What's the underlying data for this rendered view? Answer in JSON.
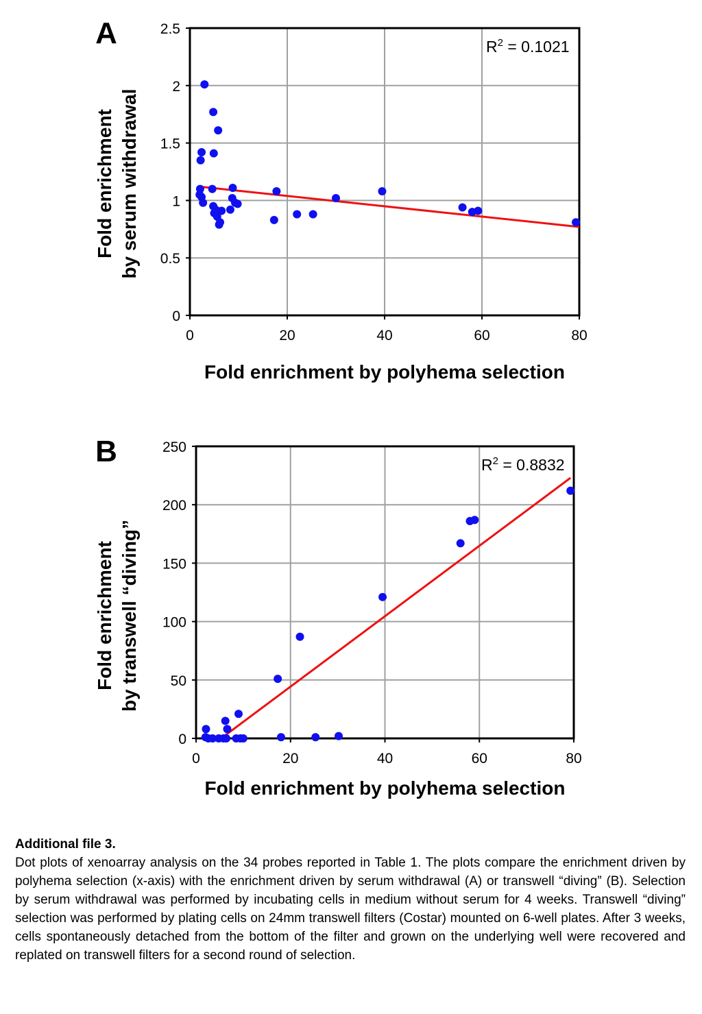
{
  "chart_data": [
    {
      "type": "scatter",
      "panel_label": "A",
      "xlabel": "Fold enrichment by polyhema selection",
      "ylabel_lines": [
        "Fold enrichment",
        "by serum withdrawal"
      ],
      "xlim": [
        0,
        80
      ],
      "ylim": [
        0,
        2.5
      ],
      "x_ticks": [
        0,
        20,
        40,
        60,
        80
      ],
      "y_ticks": [
        0,
        0.5,
        1,
        1.5,
        2,
        2.5
      ],
      "x_tick_labels": [
        "0",
        "20",
        "40",
        "60",
        "80"
      ],
      "y_tick_labels": [
        "0",
        "0.5",
        "1",
        "1.5",
        "2",
        "2.5"
      ],
      "grid": true,
      "annotation": {
        "base": "R",
        "sup": "2",
        "rest": " = 0.1021"
      },
      "point_color": "#1010ee",
      "line_color": "#ee1111",
      "trendline": {
        "x": [
          2,
          80
        ],
        "y": [
          1.12,
          0.77
        ]
      },
      "points": [
        [
          3,
          2.01
        ],
        [
          4.8,
          1.77
        ],
        [
          5.8,
          1.61
        ],
        [
          2.4,
          1.42
        ],
        [
          4.9,
          1.41
        ],
        [
          2.2,
          1.35
        ],
        [
          2.1,
          1.1
        ],
        [
          2.0,
          1.05
        ],
        [
          2.4,
          1.03
        ],
        [
          2.7,
          0.98
        ],
        [
          4.6,
          1.1
        ],
        [
          4.8,
          0.95
        ],
        [
          5.3,
          0.92
        ],
        [
          5.0,
          0.89
        ],
        [
          5.6,
          0.86
        ],
        [
          6.2,
          0.81
        ],
        [
          6.0,
          0.79
        ],
        [
          6.5,
          0.91
        ],
        [
          8.8,
          1.11
        ],
        [
          8.7,
          1.02
        ],
        [
          9.3,
          0.98
        ],
        [
          9.8,
          0.97
        ],
        [
          8.3,
          0.92
        ],
        [
          17.3,
          0.83
        ],
        [
          17.8,
          1.08
        ],
        [
          22.0,
          0.88
        ],
        [
          25.3,
          0.88
        ],
        [
          30.0,
          1.02
        ],
        [
          39.5,
          1.08
        ],
        [
          56.0,
          0.94
        ],
        [
          58.0,
          0.9
        ],
        [
          59.2,
          0.91
        ],
        [
          79.3,
          0.81
        ]
      ]
    },
    {
      "type": "scatter",
      "panel_label": "B",
      "xlabel": "Fold enrichment by polyhema selection",
      "ylabel_lines": [
        "Fold enrichment",
        "by transwell “diving”"
      ],
      "xlim": [
        0,
        80
      ],
      "ylim": [
        0,
        250
      ],
      "x_ticks": [
        0,
        20,
        40,
        60,
        80
      ],
      "y_ticks": [
        0,
        50,
        100,
        150,
        200,
        250
      ],
      "x_tick_labels": [
        "0",
        "20",
        "40",
        "60",
        "80"
      ],
      "y_tick_labels": [
        "0",
        "50",
        "100",
        "150",
        "200",
        "250"
      ],
      "grid": true,
      "annotation": {
        "base": "R",
        "sup": "2",
        "rest": " = 0.8832"
      },
      "point_color": "#1010ee",
      "line_color": "#ee1111",
      "trendline": {
        "x": [
          5.3,
          79.3
        ],
        "y": [
          0,
          223
        ]
      },
      "points": [
        [
          79.3,
          212
        ],
        [
          56.0,
          167
        ],
        [
          58.0,
          186
        ],
        [
          59.0,
          187
        ],
        [
          39.5,
          121
        ],
        [
          22.0,
          87
        ],
        [
          17.3,
          51
        ],
        [
          9.0,
          21
        ],
        [
          6.2,
          15
        ],
        [
          6.6,
          8
        ],
        [
          2.1,
          8
        ],
        [
          2.0,
          1
        ],
        [
          2.6,
          0
        ],
        [
          3.5,
          0
        ],
        [
          4.8,
          0
        ],
        [
          5.8,
          0
        ],
        [
          6.4,
          0
        ],
        [
          8.5,
          0
        ],
        [
          9.4,
          0
        ],
        [
          10.0,
          0
        ],
        [
          18.0,
          1
        ],
        [
          25.3,
          1
        ],
        [
          30.2,
          2
        ]
      ]
    }
  ],
  "caption": {
    "title": "Additional file 3.",
    "body": "Dot plots of xenoarray analysis on the 34 probes reported in Table 1. The plots compare the enrichment driven by polyhema selection (x-axis) with the enrichment driven by serum withdrawal (A) or transwell “diving” (B). Selection by serum withdrawal was performed by incubating cells in medium without serum for 4 weeks. Transwell “diving” selection was performed by plating cells on 24mm transwell filters (Costar) mounted on 6-well plates. After 3 weeks, cells spontaneously detached from the bottom of the filter and grown on the underlying well were recovered and replated on transwell filters for a second round of selection."
  }
}
